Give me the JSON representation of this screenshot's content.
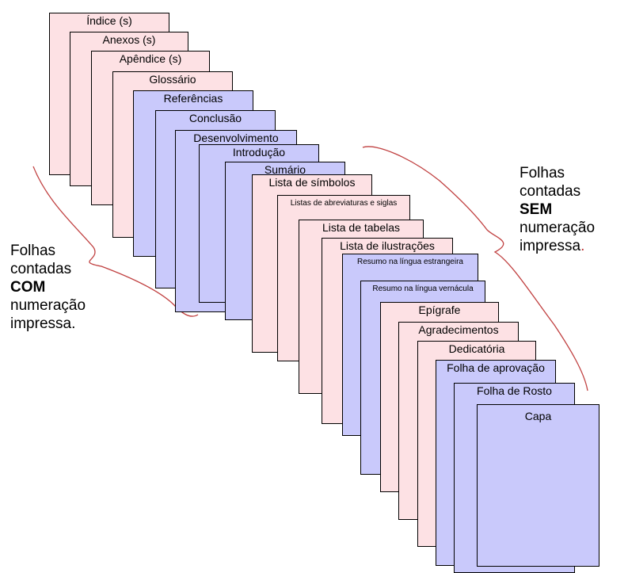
{
  "colors": {
    "pink": "#fde1e4",
    "blue": "#c9c9fb",
    "brace": "#c04040",
    "border": "#000000"
  },
  "sheets": [
    {
      "label": "Índice (s)",
      "color": "pink"
    },
    {
      "label": "Anexos (s)",
      "color": "pink"
    },
    {
      "label": "Apêndice (s)",
      "color": "pink"
    },
    {
      "label": "Glossário",
      "color": "pink"
    },
    {
      "label": "Referências",
      "color": "blue"
    },
    {
      "label": "Conclusão",
      "color": "blue"
    },
    {
      "label": "Desenvolvimento",
      "color": "blue"
    },
    {
      "label": "Introdução",
      "color": "blue"
    },
    {
      "label": "Sumário",
      "color": "blue"
    },
    {
      "label": "Lista de símbolos",
      "color": "pink"
    },
    {
      "label": "Listas de abreviaturas e siglas",
      "color": "pink"
    },
    {
      "label": "Lista de tabelas",
      "color": "pink"
    },
    {
      "label": "Lista de ilustrações",
      "color": "pink"
    },
    {
      "label": "Resumo na língua estrangeira",
      "color": "blue"
    },
    {
      "label": "Resumo na língua vernácula",
      "color": "blue"
    },
    {
      "label": "Epígrafe",
      "color": "pink"
    },
    {
      "label": "Agradecimentos",
      "color": "pink"
    },
    {
      "label": "Dedicatória",
      "color": "pink"
    },
    {
      "label": "Folha de aprovação",
      "color": "blue"
    },
    {
      "label": "Folha de Rosto",
      "color": "blue"
    },
    {
      "label": "Capa",
      "color": "blue"
    }
  ],
  "notes": {
    "with": {
      "line1": "Folhas",
      "line2": "contadas",
      "emph": "COM",
      "line4": "numeração",
      "line5": "impressa."
    },
    "without": {
      "line1": "Folhas",
      "line2": "contadas",
      "emph": "SEM",
      "line4": "numeração",
      "line5": "impressa",
      "dot": "."
    }
  }
}
